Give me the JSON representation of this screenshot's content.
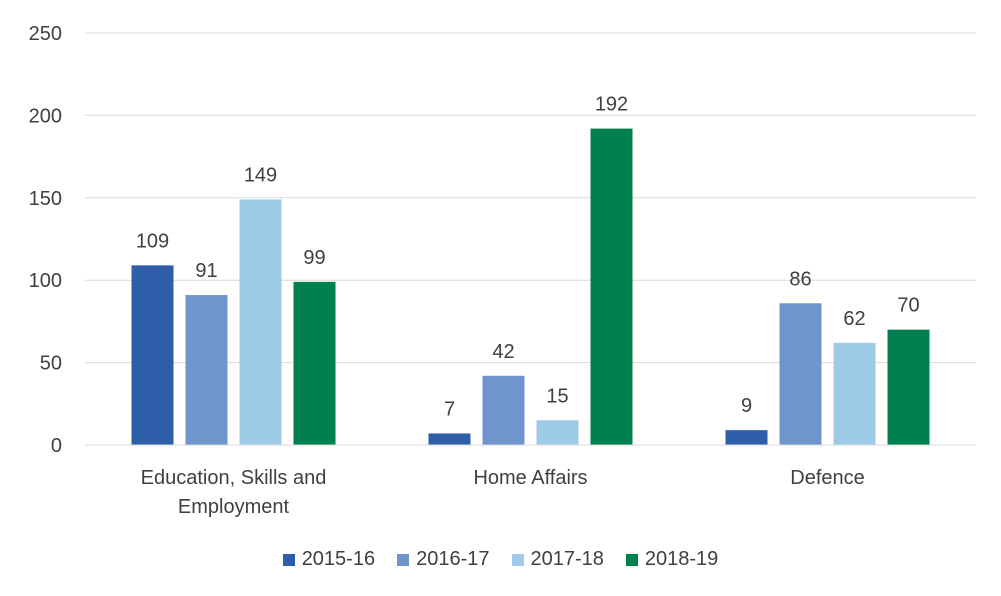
{
  "chart_data": {
    "type": "bar",
    "title": "",
    "xlabel": "",
    "ylabel": "",
    "categories": [
      [
        "Education, Skills and",
        "Employment"
      ],
      [
        "Home Affairs"
      ],
      [
        "Defence"
      ]
    ],
    "series": [
      {
        "name": "2015-16",
        "values": [
          109,
          7,
          9
        ],
        "color": "#2E5DAA"
      },
      {
        "name": "2016-17",
        "values": [
          91,
          42,
          86
        ],
        "color": "#6F96CC"
      },
      {
        "name": "2017-18",
        "values": [
          149,
          15,
          62
        ],
        "color": "#9DCAE6"
      },
      {
        "name": "2018-19",
        "values": [
          99,
          192,
          70
        ],
        "color": "#00804F"
      }
    ],
    "ylim": [
      0,
      250
    ],
    "yticks": [
      0,
      50,
      100,
      150,
      200,
      250
    ],
    "grid": true,
    "legend_position": "bottom",
    "data_labels": true
  }
}
